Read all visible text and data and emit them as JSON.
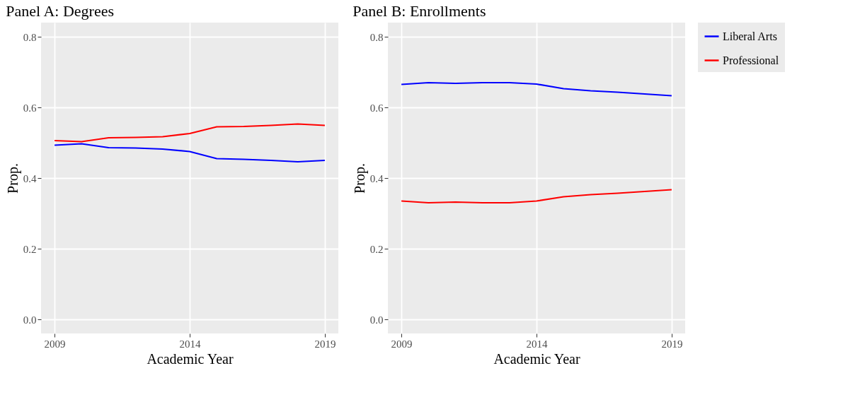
{
  "chart_data": [
    {
      "type": "line",
      "title": "Panel A: Degrees",
      "xlabel": "Academic Year",
      "ylabel": "Prop.",
      "x": [
        2009,
        2010,
        2011,
        2012,
        2013,
        2014,
        2015,
        2016,
        2017,
        2018,
        2019
      ],
      "series": [
        {
          "name": "Liberal Arts",
          "color": "#0000ff",
          "values": [
            0.493,
            0.497,
            0.486,
            0.485,
            0.482,
            0.475,
            0.455,
            0.453,
            0.45,
            0.446,
            0.45
          ]
        },
        {
          "name": "Professional",
          "color": "#ff0000",
          "values": [
            0.506,
            0.503,
            0.514,
            0.515,
            0.517,
            0.526,
            0.545,
            0.546,
            0.549,
            0.553,
            0.549
          ]
        }
      ],
      "xlim": [
        2008.5,
        2019.5
      ],
      "ylim": [
        -0.04,
        0.84
      ],
      "xticks": [
        2009,
        2014,
        2019
      ],
      "yticks": [
        {
          "value": 0,
          "label": "0.0"
        },
        0.2,
        0.4,
        0.6,
        0.8
      ],
      "grid": true,
      "legend": "right"
    },
    {
      "type": "line",
      "title": "Panel B: Enrollments",
      "xlabel": "Academic Year",
      "ylabel": "Prop.",
      "x": [
        2009,
        2010,
        2011,
        2012,
        2013,
        2014,
        2015,
        2016,
        2017,
        2018,
        2019
      ],
      "series": [
        {
          "name": "Liberal Arts",
          "color": "#0000ff",
          "values": [
            0.665,
            0.67,
            0.668,
            0.67,
            0.67,
            0.666,
            0.653,
            0.647,
            0.643,
            0.638,
            0.633
          ]
        },
        {
          "name": "Professional",
          "color": "#ff0000",
          "values": [
            0.335,
            0.33,
            0.332,
            0.33,
            0.33,
            0.335,
            0.347,
            0.353,
            0.357,
            0.362,
            0.367
          ]
        }
      ],
      "xlim": [
        2008.5,
        2019.5
      ],
      "ylim": [
        -0.04,
        0.84
      ],
      "xticks": [
        2009,
        2014,
        2019
      ],
      "yticks": [
        {
          "value": 0,
          "label": "0.0"
        },
        0.2,
        0.4,
        0.6,
        0.8
      ],
      "grid": true,
      "legend": "right"
    }
  ]
}
